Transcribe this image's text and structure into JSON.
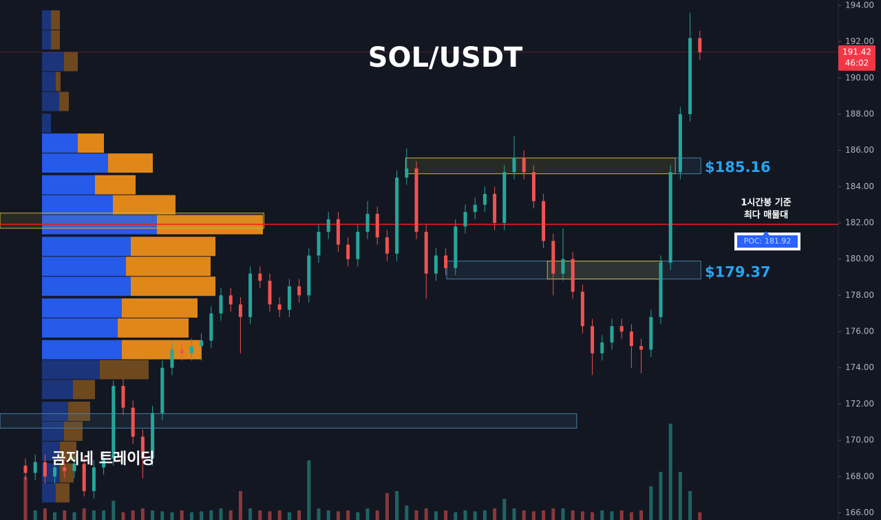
{
  "chart_data": {
    "type": "candlestick",
    "title": "SOL/USDT",
    "watermark": "곰지네 트레이딩",
    "up_color": "#26a69a",
    "down_color": "#ef5350",
    "grid": false,
    "ylim": [
      165.6,
      194.3
    ],
    "yticks": [
      {
        "value": 166,
        "label": "166.00"
      },
      {
        "value": 168,
        "label": "168.00"
      },
      {
        "value": 170,
        "label": "170.00"
      },
      {
        "value": 172,
        "label": "172.00"
      },
      {
        "value": 174,
        "label": "174.00"
      },
      {
        "value": 176,
        "label": "176.00"
      },
      {
        "value": 178,
        "label": "178.00"
      },
      {
        "value": 180,
        "label": "180.00"
      },
      {
        "value": 182,
        "label": "182.00"
      },
      {
        "value": 184,
        "label": "184.00"
      },
      {
        "value": 186,
        "label": "186.00"
      },
      {
        "value": 188,
        "label": "188.00"
      },
      {
        "value": 190,
        "label": "190.00"
      },
      {
        "value": 192,
        "label": "192.00"
      },
      {
        "value": 194,
        "label": "194.00"
      }
    ],
    "open": [
      168.6,
      168.2,
      168.8,
      168.0,
      168.5,
      168.3,
      168.7,
      167.2,
      168.5,
      169.0,
      173.0,
      171.8,
      170.2,
      169.0,
      171.5,
      174.0,
      175.0,
      174.8,
      175.2,
      175.5,
      177.0,
      178.0,
      177.5,
      176.8,
      179.2,
      178.8,
      177.5,
      177.2,
      178.5,
      178.0,
      180.2,
      181.5,
      182.2,
      180.8,
      180.0,
      181.5,
      182.5,
      181.2,
      180.3,
      184.5,
      185.0,
      181.5,
      179.2,
      180.2,
      179.5,
      181.8,
      182.6,
      183.0,
      183.6,
      182.0,
      184.8,
      185.6,
      184.8,
      183.2,
      181.0,
      179.2,
      180.0,
      178.2,
      176.3,
      174.8,
      175.4,
      176.3,
      176.0,
      175.2,
      175.0,
      176.8,
      179.8,
      184.8,
      188.0,
      192.2
    ],
    "high": [
      169.0,
      169.2,
      169.2,
      168.9,
      168.9,
      169.1,
      169.1,
      168.9,
      169.4,
      173.3,
      173.4,
      172.2,
      170.6,
      171.9,
      174.4,
      175.4,
      175.4,
      175.6,
      175.9,
      177.4,
      178.4,
      178.4,
      177.9,
      179.6,
      179.6,
      179.2,
      177.9,
      178.9,
      178.9,
      180.6,
      181.9,
      182.6,
      182.6,
      181.2,
      181.9,
      183.2,
      182.9,
      181.6,
      184.9,
      186.1,
      185.4,
      181.9,
      180.6,
      180.6,
      182.2,
      183.0,
      183.4,
      184.0,
      184.0,
      185.2,
      186.8,
      186.0,
      185.2,
      183.6,
      181.4,
      181.7,
      180.4,
      178.6,
      176.7,
      175.8,
      176.7,
      176.7,
      176.4,
      175.6,
      177.2,
      180.2,
      185.2,
      188.4,
      193.6,
      192.6
    ],
    "low": [
      167.8,
      167.8,
      167.6,
      167.6,
      167.9,
      167.9,
      166.9,
      166.8,
      168.1,
      168.6,
      171.4,
      169.8,
      167.9,
      168.6,
      171.1,
      173.6,
      174.4,
      174.4,
      174.4,
      175.1,
      176.6,
      177.1,
      174.8,
      176.4,
      178.4,
      177.1,
      176.8,
      176.8,
      177.6,
      177.6,
      179.8,
      181.1,
      180.4,
      179.6,
      179.6,
      181.1,
      180.8,
      179.9,
      179.9,
      184.1,
      181.1,
      177.8,
      178.8,
      179.1,
      179.1,
      181.4,
      182.2,
      182.6,
      181.6,
      181.6,
      184.4,
      184.4,
      182.8,
      180.6,
      178.0,
      178.8,
      177.8,
      175.9,
      173.6,
      174.4,
      175.0,
      175.6,
      174.0,
      173.7,
      174.6,
      176.4,
      179.4,
      184.4,
      187.6,
      191.0
    ],
    "close": [
      168.2,
      168.8,
      168.0,
      168.5,
      168.3,
      168.7,
      167.2,
      168.5,
      169.0,
      173.0,
      171.8,
      170.2,
      169.0,
      171.5,
      174.0,
      175.0,
      174.8,
      175.2,
      175.5,
      177.0,
      178.0,
      177.5,
      176.8,
      179.2,
      178.8,
      177.5,
      177.2,
      178.5,
      178.0,
      180.2,
      181.5,
      182.2,
      180.8,
      180.0,
      181.5,
      182.5,
      181.2,
      180.3,
      184.5,
      185.0,
      181.5,
      179.2,
      180.2,
      179.5,
      181.8,
      182.6,
      183.0,
      183.6,
      182.0,
      184.8,
      185.6,
      184.8,
      183.2,
      181.0,
      179.2,
      180.0,
      178.2,
      176.3,
      174.8,
      175.4,
      176.3,
      176.0,
      175.2,
      175.0,
      176.8,
      179.8,
      184.8,
      188.0,
      192.2,
      191.42
    ],
    "volume": [
      45,
      10,
      12,
      8,
      10,
      8,
      12,
      10,
      10,
      20,
      8,
      10,
      12,
      10,
      9,
      8,
      10,
      8,
      9,
      10,
      12,
      10,
      30,
      12,
      10,
      9,
      10,
      8,
      10,
      62,
      12,
      10,
      9,
      10,
      8,
      12,
      10,
      28,
      30,
      15,
      10,
      12,
      9,
      10,
      8,
      10,
      9,
      10,
      12,
      22,
      12,
      10,
      9,
      10,
      12,
      12,
      10,
      9,
      8,
      10,
      9,
      10,
      8,
      10,
      35,
      50,
      100,
      50,
      30,
      8
    ],
    "volume_profile": {
      "levels": [
        193.2,
        192.1,
        190.9,
        189.8,
        188.7,
        187.5,
        186.4,
        185.3,
        184.1,
        183.0,
        181.9,
        180.7,
        179.6,
        178.5,
        177.3,
        176.2,
        175.0,
        173.9,
        172.8,
        171.6,
        170.5,
        169.4,
        168.2,
        167.1
      ],
      "buy": [
        13,
        13,
        32,
        20,
        25,
        13,
        52,
        96,
        77,
        103,
        167,
        129,
        122,
        129,
        116,
        110,
        116,
        84,
        45,
        38,
        32,
        26,
        26,
        20
      ],
      "sell": [
        13,
        13,
        20,
        7,
        14,
        0,
        38,
        65,
        59,
        91,
        154,
        123,
        123,
        123,
        110,
        103,
        116,
        71,
        32,
        32,
        27,
        24,
        20,
        20
      ],
      "value_area_high": 186.4,
      "value_area_low": 175.0
    },
    "zones": [
      {
        "top": 182.54,
        "bottom": 181.7,
        "start": -2.6,
        "end": 24.4,
        "color": "#c9b347"
      },
      {
        "top": 171.47,
        "bottom": 170.67,
        "start": -2.6,
        "end": 56.4,
        "color": "#4a7fa8"
      },
      {
        "top": 185.58,
        "bottom": 184.71,
        "start": 38.9,
        "end": 66.5,
        "color": "#c9b347"
      },
      {
        "top": 185.58,
        "bottom": 184.71,
        "start": 66.5,
        "end": 69.1,
        "color": "#4a7fa8"
      },
      {
        "top": 179.89,
        "bottom": 178.9,
        "start": 43.1,
        "end": 69.1,
        "color": "#4a7fa8"
      },
      {
        "top": 179.89,
        "bottom": 178.9,
        "start": 53.4,
        "end": 65.1,
        "color": "#c9b347"
      }
    ],
    "levels": [
      {
        "value": 185.16,
        "label": "$185.16"
      },
      {
        "value": 179.37,
        "label": "$179.37"
      }
    ],
    "poc": {
      "value": 181.92,
      "label": "POC: 181.92"
    },
    "poc_note": [
      "1시간봉 기준",
      "최다 매물대"
    ],
    "last_price": 191.42,
    "countdown": "46:02"
  }
}
